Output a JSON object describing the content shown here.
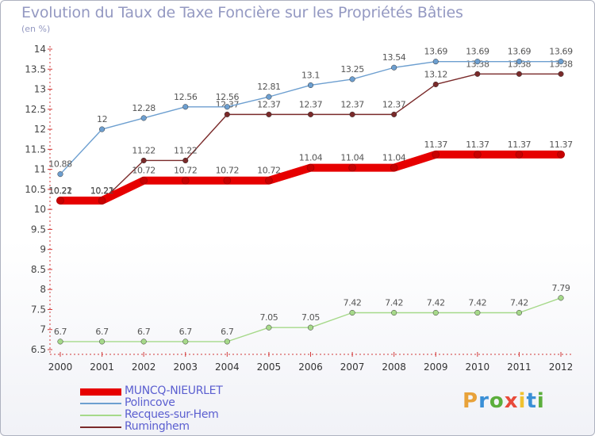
{
  "title": "Evolution du Taux de Taxe Foncière sur les Propriétés Bâties",
  "unit_label": "(en %)",
  "logo_text": "Proxiti",
  "chart_data": {
    "type": "line",
    "title": "Evolution du Taux de Taxe Foncière sur les Propriétés Bâties",
    "ylabel": "(en %)",
    "xlabel": "",
    "ylim": [
      6.5,
      14
    ],
    "yticks": [
      6.5,
      7,
      7.5,
      8,
      8.5,
      9,
      9.5,
      10,
      10.5,
      11,
      11.5,
      12,
      12.5,
      13,
      13.5,
      14
    ],
    "grid": false,
    "legend_position": "bottom-left",
    "categories": [
      "2000",
      "2001",
      "2002",
      "2003",
      "2004",
      "2005",
      "2006",
      "2007",
      "2008",
      "2009",
      "2010",
      "2011",
      "2012"
    ],
    "series": [
      {
        "name": "Rumínghem",
        "color": "#7a2a2a",
        "values": [
          10.21,
          10.21,
          11.22,
          11.22,
          12.37,
          12.37,
          12.37,
          12.37,
          12.37,
          13.12,
          13.38,
          13.38,
          13.38
        ],
        "labels": [
          "10.21",
          "10.21",
          "11.22",
          "11.22",
          "12.37",
          "12.37",
          "12.37",
          "12.37",
          "12.37",
          "13.12",
          "13.38",
          "13.38",
          "13.38"
        ]
      },
      {
        "name": "Polincove",
        "color": "#6d9fd0",
        "values": [
          10.88,
          12,
          12.28,
          12.56,
          12.56,
          12.81,
          13.1,
          13.25,
          13.54,
          13.69,
          13.69,
          13.69,
          13.69
        ],
        "labels": [
          "10.88",
          "12",
          "12.28",
          "12.56",
          "12.56",
          "12.81",
          "13.1",
          "13.25",
          "13.54",
          "13.69",
          "13.69",
          "13.69",
          "13.69"
        ]
      },
      {
        "name": "Recques-sur-Hem",
        "color": "#a6d98a",
        "values": [
          6.7,
          6.7,
          6.7,
          6.7,
          6.7,
          7.05,
          7.05,
          7.42,
          7.42,
          7.42,
          7.42,
          7.42,
          7.79
        ],
        "labels": [
          "6.7",
          "6.7",
          "6.7",
          "6.7",
          "6.7",
          "7.05",
          "7.05",
          "7.42",
          "7.42",
          "7.42",
          "7.42",
          "7.42",
          "7.79"
        ]
      },
      {
        "name": "MUNCQ-NIEURLET",
        "color": "#e60000",
        "values": [
          10.22,
          10.22,
          10.72,
          10.72,
          10.72,
          10.72,
          11.04,
          11.04,
          11.04,
          11.37,
          11.37,
          11.37,
          11.37
        ],
        "labels": [
          "10.22",
          "10.22",
          "10.72",
          "10.72",
          "10.72",
          "10.72",
          "11.04",
          "11.04",
          "11.04",
          "11.37",
          "11.37",
          "11.37",
          "11.37"
        ]
      }
    ]
  },
  "legend": [
    {
      "name": "MUNCQ-NIEURLET",
      "color": "#e60000"
    },
    {
      "name": "Polincove",
      "color": "#6d9fd0"
    },
    {
      "name": "Recques-sur-Hem",
      "color": "#a6d98a"
    },
    {
      "name": "Ruminghem",
      "color": "#7a2a2a"
    }
  ]
}
